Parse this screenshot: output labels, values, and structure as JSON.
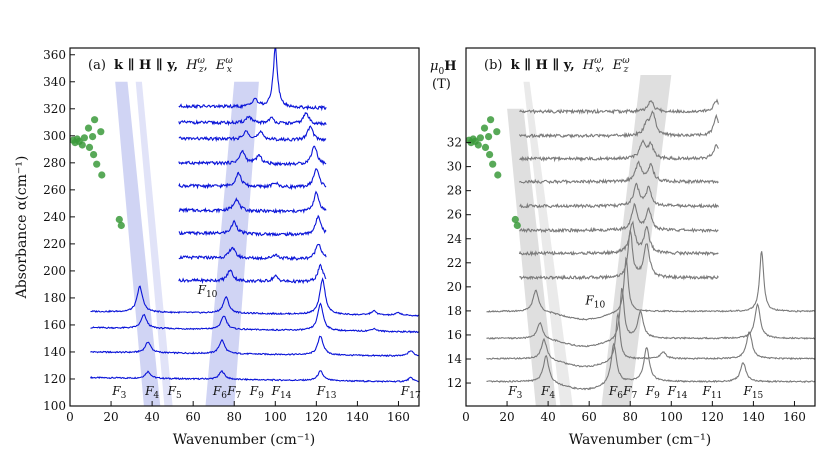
{
  "chart_data": [
    {
      "panel": "a",
      "type": "line",
      "title": "(a) k ∥ H ∥ y, Hzω, Exω",
      "title_parts": {
        "prefix": "(a)",
        "config": "k ∥ H ∥ y,",
        "h": "H",
        "h_sub": "z",
        "e": "E",
        "e_sub": "x",
        "omega": "ω"
      },
      "xlabel": "Wavenumber (cm⁻¹)",
      "ylabel": "Absorbance α(cm⁻¹)",
      "xlim": [
        0,
        170
      ],
      "ylim": [
        100,
        365
      ],
      "xticks": [
        0,
        20,
        40,
        60,
        80,
        100,
        120,
        140,
        160
      ],
      "yticks": [
        100,
        120,
        140,
        160,
        180,
        200,
        220,
        240,
        260,
        280,
        300,
        320,
        340,
        360
      ],
      "line_color": "#0a14d8",
      "band_color": "#c8ccf2",
      "mode_labels": [
        {
          "text": "F",
          "sub": "3",
          "x": 24,
          "y": 108
        },
        {
          "text": "F",
          "sub": "4",
          "x": 40,
          "y": 108
        },
        {
          "text": "F",
          "sub": "5",
          "x": 51,
          "y": 108
        },
        {
          "text": "F",
          "sub": "6",
          "x": 73,
          "y": 108
        },
        {
          "text": "F",
          "sub": "7",
          "x": 80,
          "y": 108
        },
        {
          "text": "F",
          "sub": "9",
          "x": 91,
          "y": 108
        },
        {
          "text": "F",
          "sub": "14",
          "x": 103,
          "y": 108
        },
        {
          "text": "F",
          "sub": "13",
          "x": 125,
          "y": 108
        },
        {
          "text": "F",
          "sub": "17",
          "x": 166,
          "y": 108
        },
        {
          "text": "F",
          "sub": "10",
          "x": 67,
          "y": 183
        }
      ],
      "field_axis": {
        "label": "μ0H",
        "unit": "(T)",
        "ticks": [
          12,
          14,
          16,
          18,
          20,
          22,
          24,
          26,
          28,
          30,
          32
        ]
      },
      "field_points_T": [
        32.2,
        32.0,
        32.3,
        32.1,
        31.8,
        32.4,
        33.2,
        33.9,
        32.9,
        32.5,
        31.6,
        31.0,
        30.2,
        29.3,
        25.6,
        25.1
      ],
      "field_points_x": [
        1.5,
        2.5,
        3.5,
        4.5,
        6.0,
        7.0,
        9.0,
        12.0,
        15.0,
        11.0,
        9.5,
        11.5,
        13.0,
        15.5,
        24.0,
        25.0
      ],
      "spectra": [
        {
          "field_T": 12,
          "baseline": 121,
          "x_range": [
            10,
            170
          ],
          "peaks": [
            [
              38,
              5
            ],
            [
              74,
              6
            ],
            [
              122,
              7
            ],
            [
              166,
              3
            ]
          ]
        },
        {
          "field_T": 14,
          "baseline": 140,
          "x_range": [
            10,
            170
          ],
          "peaks": [
            [
              38,
              8
            ],
            [
              74,
              10
            ],
            [
              122,
              14
            ],
            [
              166,
              4
            ]
          ]
        },
        {
          "field_T": 16,
          "baseline": 158,
          "x_range": [
            10,
            170
          ],
          "peaks": [
            [
              36,
              10
            ],
            [
              75,
              10
            ],
            [
              122,
              20
            ],
            [
              148,
              2
            ]
          ]
        },
        {
          "field_T": 18,
          "baseline": 170,
          "x_range": [
            10,
            170
          ],
          "peaks": [
            [
              34,
              19
            ],
            [
              76,
              12
            ],
            [
              123,
              26
            ],
            [
              148,
              3
            ],
            [
              160,
              2
            ]
          ]
        },
        {
          "field_T": 20,
          "baseline": 193,
          "x_range": [
            53,
            125
          ],
          "peaks": [
            [
              78,
              8
            ],
            [
              100,
              4
            ],
            [
              122,
              12
            ]
          ]
        },
        {
          "field_T": 22,
          "baseline": 210,
          "x_range": [
            53,
            125
          ],
          "peaks": [
            [
              79,
              8
            ],
            [
              100,
              3
            ],
            [
              121,
              12
            ]
          ]
        },
        {
          "field_T": 24,
          "baseline": 228,
          "x_range": [
            53,
            125
          ],
          "peaks": [
            [
              80,
              9
            ],
            [
              121,
              14
            ]
          ]
        },
        {
          "field_T": 26,
          "baseline": 245,
          "x_range": [
            53,
            125
          ],
          "peaks": [
            [
              81,
              9
            ],
            [
              120,
              14
            ]
          ]
        },
        {
          "field_T": 28,
          "baseline": 263,
          "x_range": [
            53,
            125
          ],
          "peaks": [
            [
              82,
              10
            ],
            [
              100,
              3
            ],
            [
              120,
              14
            ]
          ]
        },
        {
          "field_T": 30,
          "baseline": 280,
          "x_range": [
            53,
            125
          ],
          "peaks": [
            [
              84,
              9
            ],
            [
              92,
              6
            ],
            [
              119,
              14
            ]
          ]
        },
        {
          "field_T": 31,
          "baseline": 298,
          "x_range": [
            53,
            125
          ],
          "peaks": [
            [
              86,
              6
            ],
            [
              93,
              5
            ],
            [
              117,
              10
            ]
          ]
        },
        {
          "field_T": 32,
          "baseline": 310,
          "x_range": [
            53,
            125
          ],
          "peaks": [
            [
              87,
              5
            ],
            [
              98,
              4
            ],
            [
              115,
              8
            ]
          ]
        },
        {
          "field_T": 33,
          "baseline": 322,
          "x_range": [
            53,
            125
          ],
          "peaks": [
            [
              90,
              6
            ],
            [
              100,
              45
            ]
          ]
        }
      ]
    },
    {
      "panel": "b",
      "type": "line",
      "title": "(b) k ∥ H ∥ y, Hxω, Ezω",
      "title_parts": {
        "prefix": "(b)",
        "config": "k ∥ H ∥ y,",
        "h": "H",
        "h_sub": "x",
        "e": "E",
        "e_sub": "z",
        "omega": "ω"
      },
      "xlabel": "Wavenumber (cm⁻¹)",
      "xlim": [
        0,
        170
      ],
      "ylim": [
        100,
        365
      ],
      "xticks": [
        0,
        20,
        40,
        60,
        80,
        100,
        120,
        140,
        160
      ],
      "yticks_field": [
        12,
        14,
        16,
        18,
        20,
        22,
        24,
        26,
        28,
        30,
        32
      ],
      "line_color": "#7a7a7a",
      "band_color": "#d9d9d9",
      "mode_labels": [
        {
          "text": "F",
          "sub": "3",
          "x": 24,
          "y": 108
        },
        {
          "text": "F",
          "sub": "4",
          "x": 40,
          "y": 108
        },
        {
          "text": "F",
          "sub": "6",
          "x": 73,
          "y": 108
        },
        {
          "text": "F",
          "sub": "7",
          "x": 80,
          "y": 108
        },
        {
          "text": "F",
          "sub": "9",
          "x": 91,
          "y": 108
        },
        {
          "text": "F",
          "sub": "14",
          "x": 103,
          "y": 108
        },
        {
          "text": "F",
          "sub": "11",
          "x": 120,
          "y": 108
        },
        {
          "text": "F",
          "sub": "15",
          "x": 140,
          "y": 108
        },
        {
          "text": "F",
          "sub": "10",
          "x": 63,
          "y": 175
        }
      ],
      "field_points_T": [
        32.2,
        32.0,
        32.3,
        32.1,
        31.8,
        32.4,
        33.2,
        33.9,
        32.9,
        32.5,
        31.6,
        31.0,
        30.2,
        29.3,
        25.6,
        25.1
      ],
      "field_points_x": [
        1.5,
        2.5,
        3.5,
        4.5,
        6.0,
        7.0,
        9.0,
        12.0,
        15.0,
        11.0,
        9.5,
        11.5,
        13.0,
        15.5,
        24.0,
        25.0
      ],
      "spectra": [
        {
          "field_T": 12,
          "baseline": 118,
          "x_range": [
            10,
            170
          ],
          "peaks": [
            [
              39,
              20
            ],
            [
              72,
              30
            ],
            [
              88,
              25
            ],
            [
              135,
              14
            ]
          ]
        },
        {
          "field_T": 14,
          "baseline": 135,
          "x_range": [
            10,
            170
          ],
          "peaks": [
            [
              38,
              15
            ],
            [
              74,
              35
            ],
            [
              96,
              5
            ],
            [
              138,
              20
            ]
          ]
        },
        {
          "field_T": 16,
          "baseline": 150,
          "x_range": [
            10,
            170
          ],
          "peaks": [
            [
              36,
              12
            ],
            [
              76,
              38
            ],
            [
              85,
              20
            ],
            [
              142,
              25
            ]
          ]
        },
        {
          "field_T": 18,
          "baseline": 170,
          "x_range": [
            10,
            170
          ],
          "peaks": [
            [
              34,
              16
            ],
            [
              78,
              40
            ],
            [
              144,
              45
            ]
          ]
        },
        {
          "field_T": 20,
          "baseline": 195,
          "x_range": [
            26,
            123
          ],
          "peaks": [
            [
              80,
              35
            ],
            [
              88,
              25
            ]
          ]
        },
        {
          "field_T": 22,
          "baseline": 213,
          "x_range": [
            26,
            123
          ],
          "peaks": [
            [
              81,
              22
            ],
            [
              88,
              18
            ]
          ]
        },
        {
          "field_T": 24,
          "baseline": 230,
          "x_range": [
            26,
            123
          ],
          "peaks": [
            [
              82,
              18
            ],
            [
              89,
              15
            ]
          ]
        },
        {
          "field_T": 26,
          "baseline": 248,
          "x_range": [
            26,
            123
          ],
          "peaks": [
            [
              83,
              15
            ],
            [
              89,
              13
            ]
          ]
        },
        {
          "field_T": 28,
          "baseline": 266,
          "x_range": [
            26,
            123
          ],
          "peaks": [
            [
              84,
              14
            ],
            [
              90,
              12
            ]
          ]
        },
        {
          "field_T": 30,
          "baseline": 283,
          "x_range": [
            26,
            123
          ],
          "peaks": [
            [
              86,
              12
            ],
            [
              90,
              10
            ],
            [
              122,
              10
            ]
          ]
        },
        {
          "field_T": 32,
          "baseline": 300,
          "x_range": [
            26,
            123
          ],
          "peaks": [
            [
              88,
              8
            ],
            [
              91,
              16
            ],
            [
              122,
              14
            ]
          ]
        },
        {
          "field_T": 33,
          "baseline": 318,
          "x_range": [
            26,
            123
          ],
          "peaks": [
            [
              90,
              8
            ],
            [
              122,
              8
            ]
          ]
        }
      ]
    }
  ]
}
